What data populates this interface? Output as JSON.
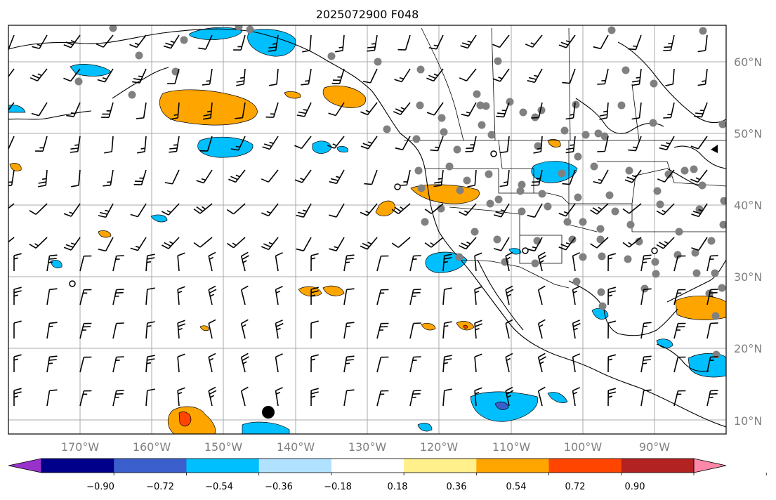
{
  "title": "2025072900 F048",
  "lat_labels": [
    "60°N",
    "50°N",
    "40°N",
    "30°N",
    "20°N",
    "10°N"
  ],
  "lon_labels": [
    "170°W",
    "160°W",
    "150°W",
    "140°W",
    "130°W",
    "120°W",
    "110°W",
    "100°W",
    "90°W"
  ],
  "colorbar": {
    "colors": [
      "#9932cc",
      "#00008b",
      "#3a5fcd",
      "#00bfff",
      "#b0e2ff",
      "#ffffff",
      "#fff08c",
      "#ffa500",
      "#ff4500",
      "#b22222",
      "#ff88a8"
    ],
    "tick_labels": [
      "−0.90",
      "−0.72",
      "−0.54",
      "−0.36",
      "−0.18",
      "0.18",
      "0.36",
      "0.54",
      "0.72",
      "0.90"
    ],
    "extend": "both"
  },
  "map": {
    "extent_lon": [
      -180,
      -80
    ],
    "extent_lat": [
      7,
      65
    ],
    "gridlines": true,
    "station_marker_color": "#808080",
    "wind_barbs": true
  }
}
